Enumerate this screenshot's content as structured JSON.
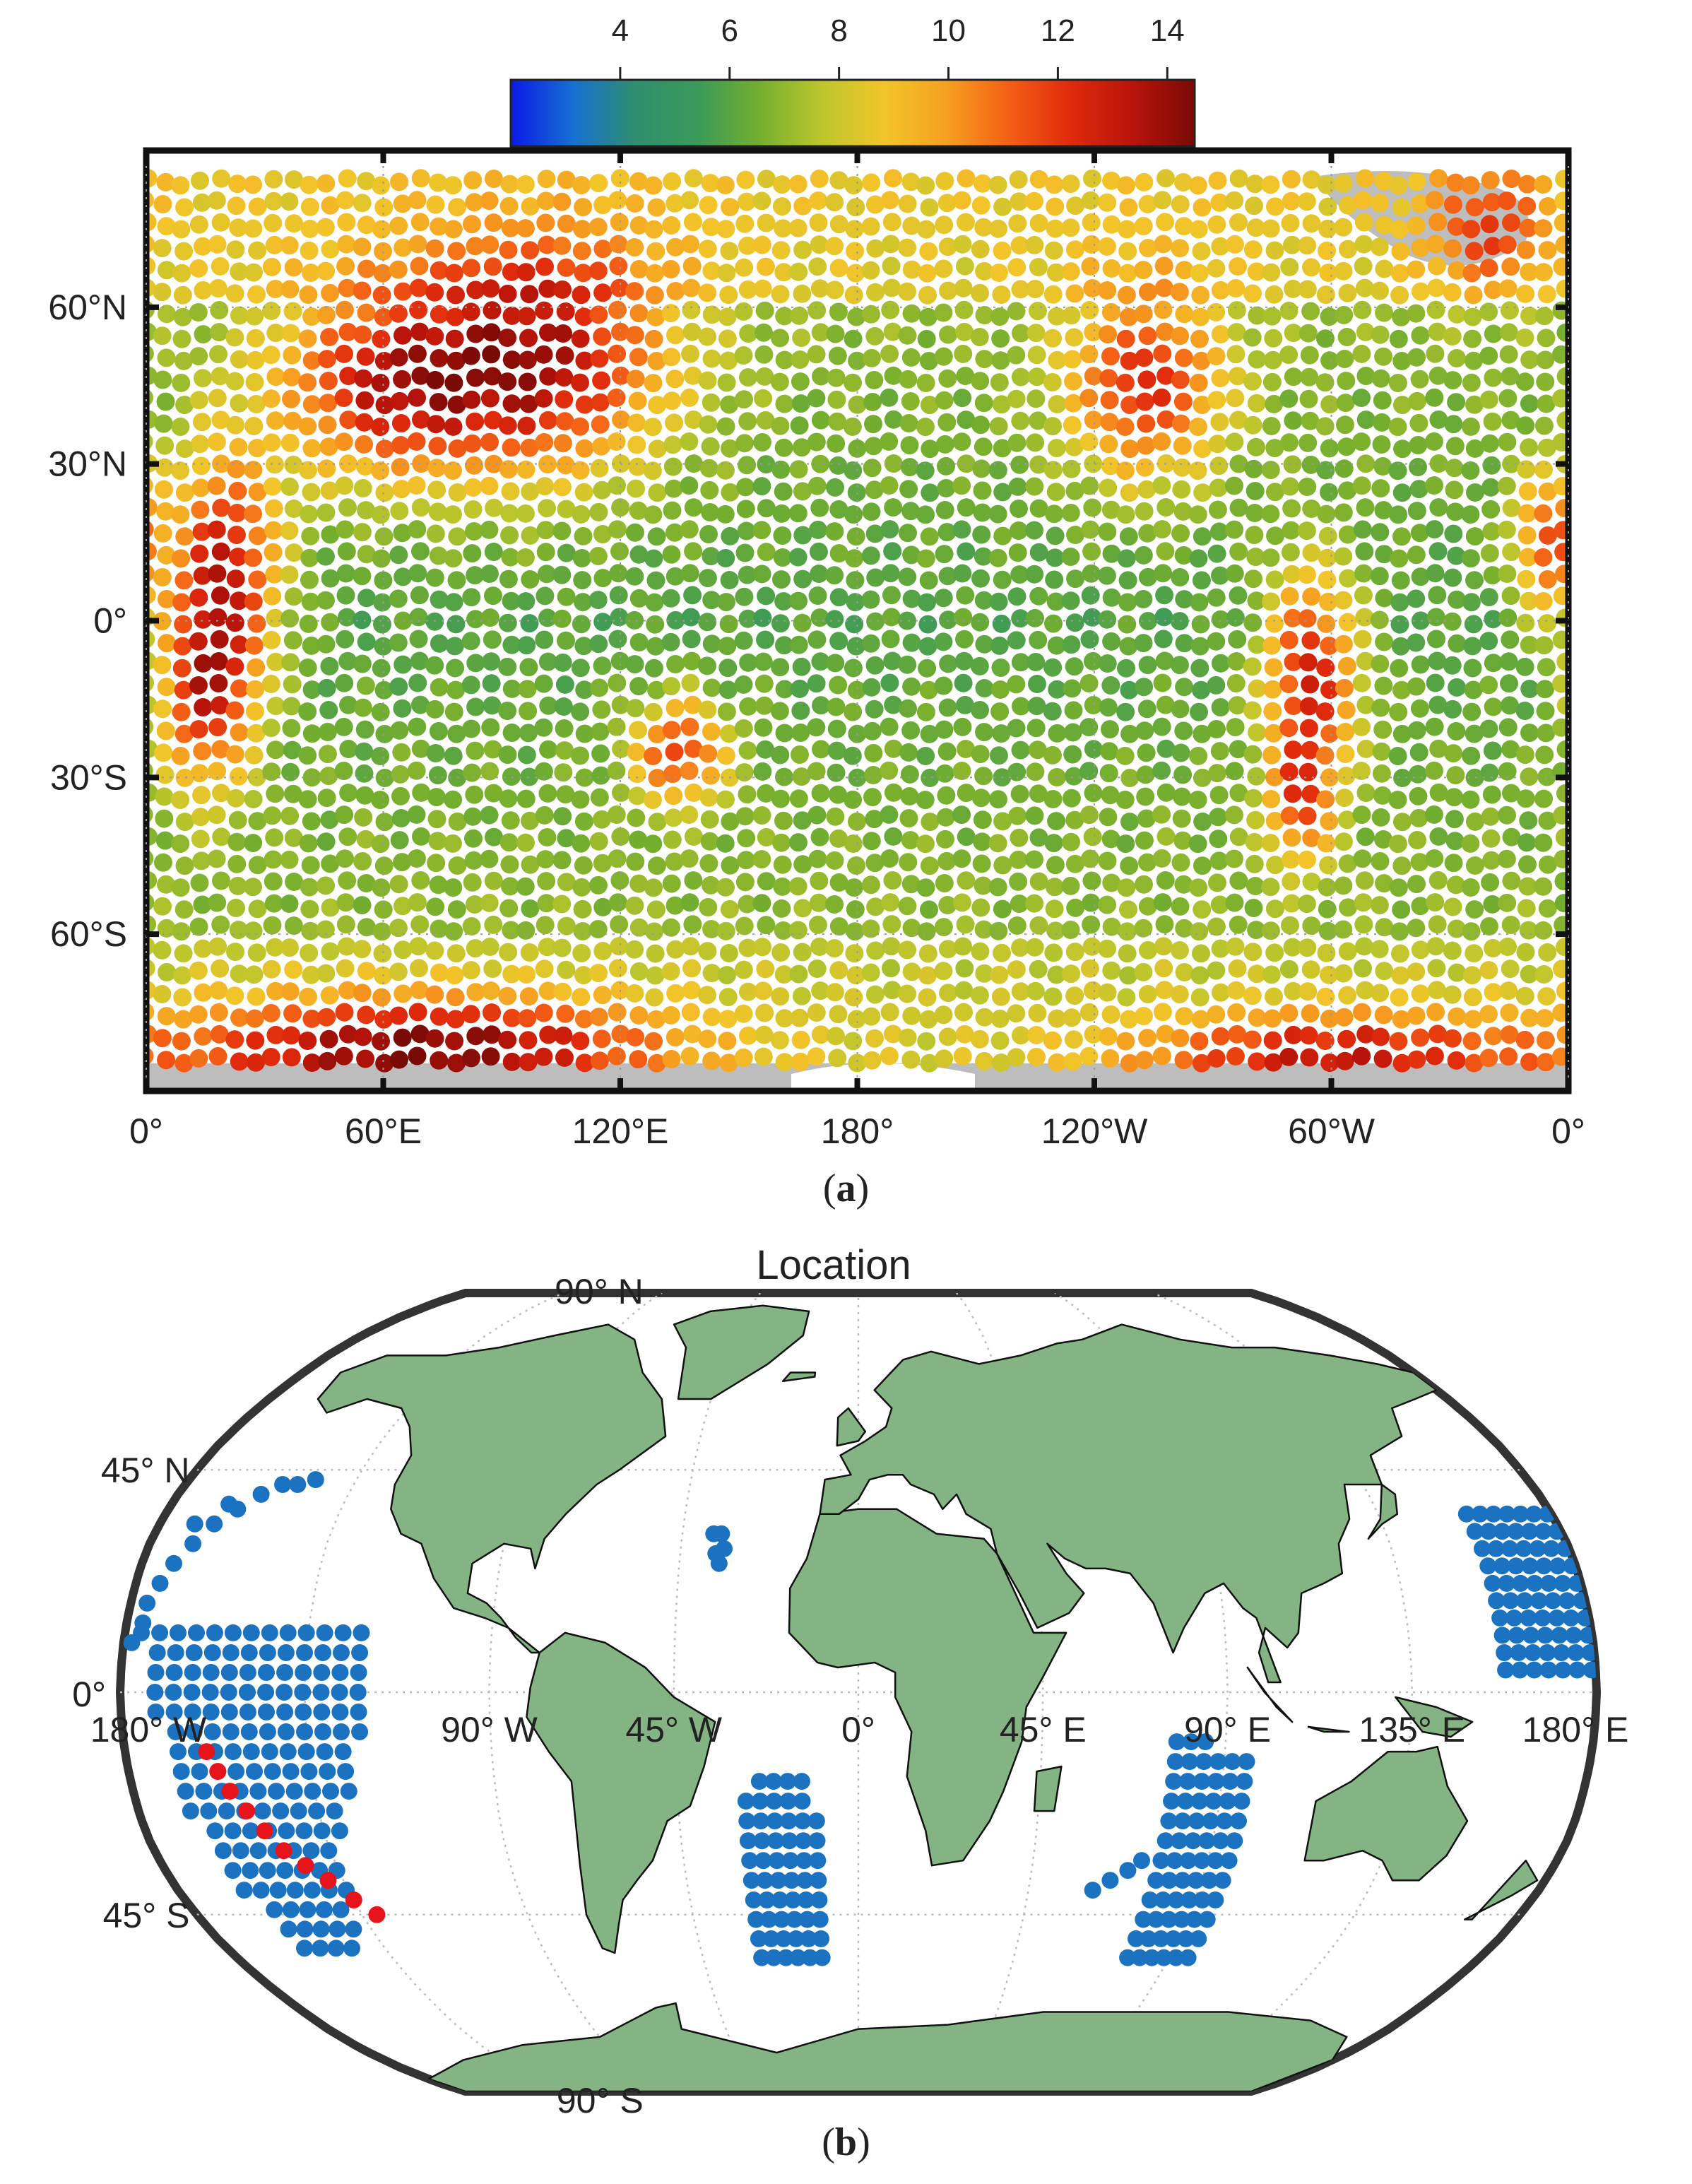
{
  "panel_a": {
    "caption_open": "(",
    "caption_letter": "a",
    "caption_close": ")",
    "colorbar": {
      "ticks": [
        "4",
        "6",
        "8",
        "10",
        "12",
        "14"
      ],
      "tick_values": [
        4,
        6,
        8,
        10,
        12,
        14
      ],
      "range": [
        2.0,
        14.5
      ],
      "colors": [
        "#0a1ae6",
        "#1670d2",
        "#2e8e6e",
        "#3a9a5a",
        "#74ae2e",
        "#bcc62c",
        "#f2c52a",
        "#f6a020",
        "#f46016",
        "#e02a0c",
        "#b8140a",
        "#7a0a06"
      ]
    },
    "x_ticks": [
      "0°",
      "60°E",
      "120°E",
      "180°",
      "120°W",
      "60°W",
      "0°"
    ],
    "x_tick_lon": [
      0,
      60,
      120,
      180,
      240,
      300,
      360
    ],
    "y_ticks": [
      "60°N",
      "30°N",
      "0°",
      "30°S",
      "60°S"
    ],
    "y_tick_lat": [
      60,
      30,
      0,
      -30,
      -60
    ],
    "lat_range": [
      -90,
      90
    ],
    "lon_range": [
      0,
      360
    ]
  },
  "panel_b": {
    "title": "Location",
    "caption_open": "(",
    "caption_letter": "b",
    "caption_close": ")",
    "land_color": "#84b484",
    "point_color": "#1a72c0",
    "highlight_color": "#e8141c",
    "lat_labels": [
      {
        "text": "90° N",
        "lat": 90
      },
      {
        "text": "45° N",
        "lat": 45
      },
      {
        "text": "0°",
        "lat": 0
      },
      {
        "text": "45° S",
        "lat": -45
      },
      {
        "text": "90° S",
        "lat": -90
      }
    ],
    "lon_labels": [
      "180° W",
      "90° W",
      "45° W",
      "0°",
      "45° E",
      "90° E",
      "135° E",
      "180° E"
    ]
  }
}
